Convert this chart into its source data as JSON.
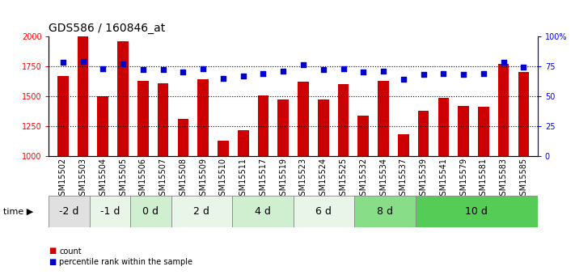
{
  "title": "GDS586 / 160846_at",
  "categories": [
    "GSM15502",
    "GSM15503",
    "GSM15504",
    "GSM15505",
    "GSM15506",
    "GSM15507",
    "GSM15508",
    "GSM15509",
    "GSM15510",
    "GSM15511",
    "GSM15517",
    "GSM15519",
    "GSM15523",
    "GSM15524",
    "GSM15525",
    "GSM15532",
    "GSM15534",
    "GSM15537",
    "GSM15539",
    "GSM15541",
    "GSM15579",
    "GSM15581",
    "GSM15583",
    "GSM15585"
  ],
  "bar_values": [
    1670,
    2000,
    1500,
    1960,
    1630,
    1610,
    1310,
    1640,
    1130,
    1220,
    1510,
    1470,
    1620,
    1475,
    1600,
    1340,
    1630,
    1185,
    1380,
    1490,
    1420,
    1415,
    1770,
    1700
  ],
  "percentile_values": [
    78,
    79,
    73,
    77,
    72,
    72,
    70,
    73,
    65,
    67,
    69,
    71,
    76,
    72,
    73,
    70,
    71,
    64,
    68,
    69,
    68,
    69,
    78,
    74
  ],
  "time_groups": [
    {
      "label": "-2 d",
      "start": 0,
      "end": 2,
      "color": "#e0e0e0"
    },
    {
      "label": "-1 d",
      "start": 2,
      "end": 4,
      "color": "#e8f5e8"
    },
    {
      "label": "0 d",
      "start": 4,
      "end": 6,
      "color": "#d0eed0"
    },
    {
      "label": "2 d",
      "start": 6,
      "end": 9,
      "color": "#e8f5e8"
    },
    {
      "label": "4 d",
      "start": 9,
      "end": 12,
      "color": "#d0eed0"
    },
    {
      "label": "6 d",
      "start": 12,
      "end": 15,
      "color": "#e8f5e8"
    },
    {
      "label": "8 d",
      "start": 15,
      "end": 18,
      "color": "#88dd88"
    },
    {
      "label": "10 d",
      "start": 18,
      "end": 24,
      "color": "#55cc55"
    }
  ],
  "ylim": [
    1000,
    2000
  ],
  "y2lim": [
    0,
    100
  ],
  "bar_color": "#cc0000",
  "dot_color": "#0000cc",
  "background_color": "#ffffff",
  "title_fontsize": 10,
  "tick_fontsize": 7,
  "label_fontsize": 7,
  "band_fontsize": 9
}
